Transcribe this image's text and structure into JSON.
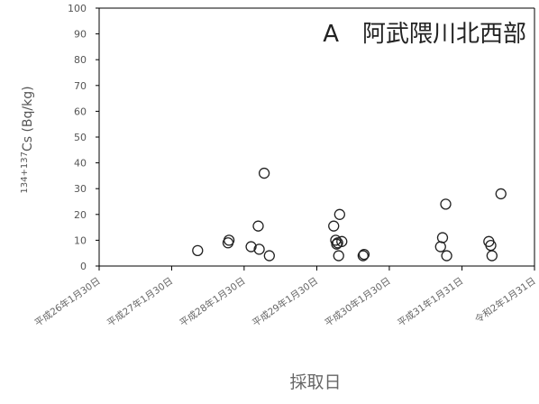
{
  "chart_data": {
    "type": "scatter",
    "title": "A　阿武隈川北西部",
    "xlabel": "採取日",
    "ylabel": "134+137Cs (Bq/kg)",
    "ylabel_sup": "134+137",
    "ylabel_main": "Cs (Bq/kg)",
    "ylim": [
      0,
      100
    ],
    "yticks": [
      0,
      10,
      20,
      30,
      40,
      50,
      60,
      70,
      80,
      90,
      100
    ],
    "xlim": [
      "2014-01-30",
      "2020-01-31"
    ],
    "xticks": [
      {
        "date": "2014-01-30",
        "label": "平成26年1月30日"
      },
      {
        "date": "2015-01-30",
        "label": "平成27年1月30日"
      },
      {
        "date": "2016-01-30",
        "label": "平成28年1月30日"
      },
      {
        "date": "2017-01-30",
        "label": "平成29年1月30日"
      },
      {
        "date": "2018-01-30",
        "label": "平成30年1月30日"
      },
      {
        "date": "2019-01-31",
        "label": "平成31年1月31日"
      },
      {
        "date": "2020-01-31",
        "label": "令和2年1月31日"
      }
    ],
    "marker": "open-circle",
    "marker_color": "#222222",
    "grid": false,
    "points": [
      {
        "x": "2015-06-10",
        "y": 6
      },
      {
        "x": "2015-11-10",
        "y": 9
      },
      {
        "x": "2015-11-15",
        "y": 10
      },
      {
        "x": "2016-03-05",
        "y": 7.5
      },
      {
        "x": "2016-04-10",
        "y": 15.5
      },
      {
        "x": "2016-04-15",
        "y": 6.5
      },
      {
        "x": "2016-05-10",
        "y": 36
      },
      {
        "x": "2016-06-05",
        "y": 4
      },
      {
        "x": "2017-04-25",
        "y": 15.5
      },
      {
        "x": "2017-05-05",
        "y": 10
      },
      {
        "x": "2017-05-10",
        "y": 8.5
      },
      {
        "x": "2017-05-15",
        "y": 9
      },
      {
        "x": "2017-05-20",
        "y": 4
      },
      {
        "x": "2017-05-25",
        "y": 20
      },
      {
        "x": "2017-06-05",
        "y": 9.5
      },
      {
        "x": "2017-09-20",
        "y": 4
      },
      {
        "x": "2017-09-25",
        "y": 4.5
      },
      {
        "x": "2018-10-15",
        "y": 7.5
      },
      {
        "x": "2018-10-25",
        "y": 11
      },
      {
        "x": "2018-11-10",
        "y": 24
      },
      {
        "x": "2018-11-15",
        "y": 4
      },
      {
        "x": "2019-06-15",
        "y": 9.5
      },
      {
        "x": "2019-06-25",
        "y": 8
      },
      {
        "x": "2019-07-01",
        "y": 4
      },
      {
        "x": "2019-08-15",
        "y": 28
      }
    ]
  }
}
